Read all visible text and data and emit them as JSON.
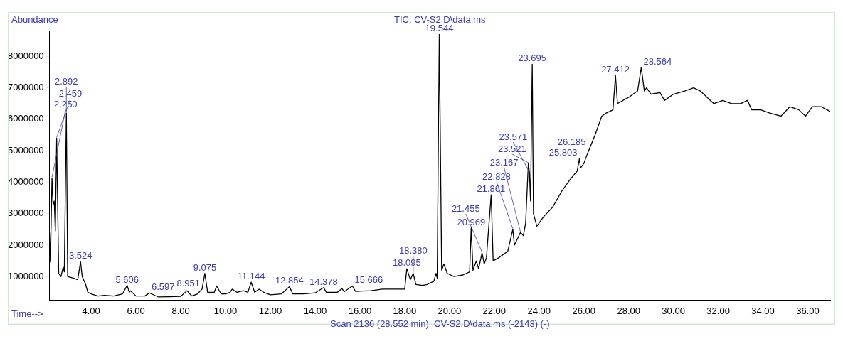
{
  "chart_data": {
    "type": "line",
    "title": "TIC: CV-S2.D\\data.ms",
    "ylabel": "Abundance",
    "xlabel": "Time-->",
    "x": [
      2.14,
      2.18,
      2.25,
      2.3,
      2.35,
      2.4,
      2.459,
      2.55,
      2.65,
      2.75,
      2.8,
      2.892,
      2.95,
      3.2,
      3.4,
      3.524,
      3.6,
      3.75,
      3.85,
      4.0,
      4.3,
      4.6,
      5.0,
      5.4,
      5.606,
      5.7,
      5.75,
      6.0,
      6.4,
      6.597,
      7.0,
      7.5,
      8.0,
      8.282,
      8.4,
      8.5,
      8.75,
      8.951,
      9.075,
      9.2,
      9.5,
      9.6,
      9.8,
      10.0,
      10.2,
      10.3,
      10.5,
      10.8,
      11.0,
      11.144,
      11.3,
      11.5,
      11.7,
      12.0,
      12.5,
      12.854,
      13.0,
      13.5,
      14.0,
      14.378,
      14.5,
      15.0,
      15.2,
      15.3,
      15.666,
      15.8,
      16.5,
      17.0,
      17.5,
      18.0,
      18.095,
      18.25,
      18.38,
      18.5,
      18.8,
      19.0,
      19.3,
      19.4,
      19.45,
      19.544,
      19.65,
      19.75,
      19.9,
      20.2,
      20.6,
      20.9,
      20.969,
      21.05,
      21.2,
      21.3,
      21.455,
      21.55,
      21.65,
      21.861,
      21.95,
      22.2,
      22.6,
      22.828,
      22.9,
      23.167,
      23.3,
      23.4,
      23.521,
      23.571,
      23.62,
      23.695,
      23.75,
      23.9,
      24.2,
      24.6,
      25.0,
      25.4,
      25.7,
      25.803,
      25.85,
      26.0,
      26.185,
      26.5,
      26.8,
      27.0,
      27.3,
      27.412,
      27.5,
      28.0,
      28.4,
      28.564,
      28.7,
      28.8,
      29.0,
      29.4,
      29.6,
      30.0,
      30.5,
      30.9,
      31.2,
      31.5,
      31.8,
      32.2,
      32.6,
      33.0,
      33.3,
      33.5,
      33.9,
      34.3,
      34.8,
      35.2,
      35.6,
      35.9,
      36.2,
      36.6,
      37.0
    ],
    "series": [
      {
        "color": "#000000",
        "values": [
          2400000,
          1460000,
          4130000,
          3300000,
          3400000,
          2450000,
          5400000,
          1100000,
          1000000,
          1300000,
          1150000,
          6200000,
          1000000,
          950000,
          900000,
          1470000,
          1000000,
          750000,
          500000,
          450000,
          380000,
          400000,
          380000,
          450000,
          720000,
          500000,
          550000,
          380000,
          380000,
          480000,
          350000,
          360000,
          370000,
          550000,
          450000,
          380000,
          450000,
          600000,
          1100000,
          500000,
          500000,
          700000,
          450000,
          450000,
          500000,
          600000,
          500000,
          550000,
          500000,
          820000,
          500000,
          600000,
          500000,
          420000,
          450000,
          680000,
          450000,
          450000,
          480000,
          650000,
          500000,
          500000,
          620000,
          520000,
          700000,
          530000,
          550000,
          600000,
          600000,
          600000,
          1250000,
          900000,
          1100000,
          750000,
          720000,
          750000,
          850000,
          1100000,
          950000,
          8700000,
          1200000,
          1400000,
          1100000,
          1000000,
          1050000,
          1150000,
          2550000,
          1200000,
          1500000,
          1250000,
          1750000,
          1400000,
          1600000,
          3600000,
          1500000,
          1600000,
          1800000,
          2500000,
          2000000,
          2400000,
          2300000,
          2700000,
          4600000,
          4300000,
          3400000,
          7750000,
          3000000,
          2600000,
          2900000,
          3200000,
          3700000,
          4100000,
          4350000,
          4750000,
          4450000,
          4600000,
          4950000,
          5500000,
          6100000,
          6200000,
          6300000,
          7400000,
          6500000,
          6700000,
          6900000,
          7650000,
          6900000,
          7000000,
          6800000,
          6850000,
          6600000,
          6800000,
          6900000,
          7000000,
          6900000,
          6700000,
          6500000,
          6600000,
          6500000,
          6500000,
          6600000,
          6300000,
          6300000,
          6200000,
          6100000,
          6400000,
          6300000,
          6100000,
          6400000,
          6400000,
          6250000
        ]
      }
    ],
    "xlim": [
      2.14,
      37.0
    ],
    "ylim": [
      250000,
      8800000
    ],
    "xticks": [
      {
        "value": 4,
        "label": "4.00"
      },
      {
        "value": 6,
        "label": "6.00"
      },
      {
        "value": 8,
        "label": "8.00"
      },
      {
        "value": 10,
        "label": "10.00"
      },
      {
        "value": 12,
        "label": "12.00"
      },
      {
        "value": 14,
        "label": "14.00"
      },
      {
        "value": 16,
        "label": "16.00"
      },
      {
        "value": 18,
        "label": "18.00"
      },
      {
        "value": 20,
        "label": "20.00"
      },
      {
        "value": 22,
        "label": "22.00"
      },
      {
        "value": 24,
        "label": "24.00"
      },
      {
        "value": 26,
        "label": "26.00"
      },
      {
        "value": 28,
        "label": "28.00"
      },
      {
        "value": 30,
        "label": "30.00"
      },
      {
        "value": 32,
        "label": "32.00"
      },
      {
        "value": 34,
        "label": "34.00"
      },
      {
        "value": 36,
        "label": "36.00"
      }
    ],
    "yticks": [
      1000000,
      2000000,
      3000000,
      4000000,
      5000000,
      6000000,
      7000000,
      8000000
    ],
    "grid": false,
    "legend": false,
    "marker": "none",
    "line_style": "solid",
    "annotations": [
      {
        "text": "2.250",
        "x": 2.25,
        "y": 4130000
      },
      {
        "text": "2.459",
        "x": 2.459,
        "y": 5400000
      },
      {
        "text": "2.892",
        "x": 2.892,
        "y": 6200000
      },
      {
        "text": "3.524",
        "x": 3.524,
        "y": 1470000
      },
      {
        "text": "5.606",
        "x": 5.606,
        "y": 720000
      },
      {
        "text": "6.597",
        "x": 6.597,
        "y": 480000
      },
      {
        "text": "8.951",
        "x": 8.951,
        "y": 600000
      },
      {
        "text": "9.075",
        "x": 9.075,
        "y": 1100000
      },
      {
        "text": "11.144",
        "x": 11.144,
        "y": 820000
      },
      {
        "text": "12.854",
        "x": 12.854,
        "y": 680000
      },
      {
        "text": "14.378",
        "x": 14.378,
        "y": 650000
      },
      {
        "text": "15.666",
        "x": 15.666,
        "y": 700000
      },
      {
        "text": "18.095",
        "x": 18.095,
        "y": 1250000
      },
      {
        "text": "18.380",
        "x": 18.38,
        "y": 1100000
      },
      {
        "text": "19.544",
        "x": 19.544,
        "y": 8700000
      },
      {
        "text": "20.969",
        "x": 20.969,
        "y": 2550000
      },
      {
        "text": "21.455",
        "x": 21.455,
        "y": 1750000
      },
      {
        "text": "21.861",
        "x": 21.861,
        "y": 3600000
      },
      {
        "text": "22.828",
        "x": 22.828,
        "y": 2500000
      },
      {
        "text": "23.167",
        "x": 23.167,
        "y": 2400000
      },
      {
        "text": "23.521",
        "x": 23.521,
        "y": 4600000
      },
      {
        "text": "23.571",
        "x": 23.571,
        "y": 4300000
      },
      {
        "text": "23.695",
        "x": 23.695,
        "y": 7750000
      },
      {
        "text": "25.803",
        "x": 25.803,
        "y": 4750000
      },
      {
        "text": "26.185",
        "x": 26.185,
        "y": 4950000
      },
      {
        "text": "27.412",
        "x": 27.412,
        "y": 7400000
      },
      {
        "text": "28.564",
        "x": 28.564,
        "y": 7650000
      },
      "Scan 2136 (28.552 min): CV-S2.D\\data.ms (-2143) (-)"
    ]
  }
}
